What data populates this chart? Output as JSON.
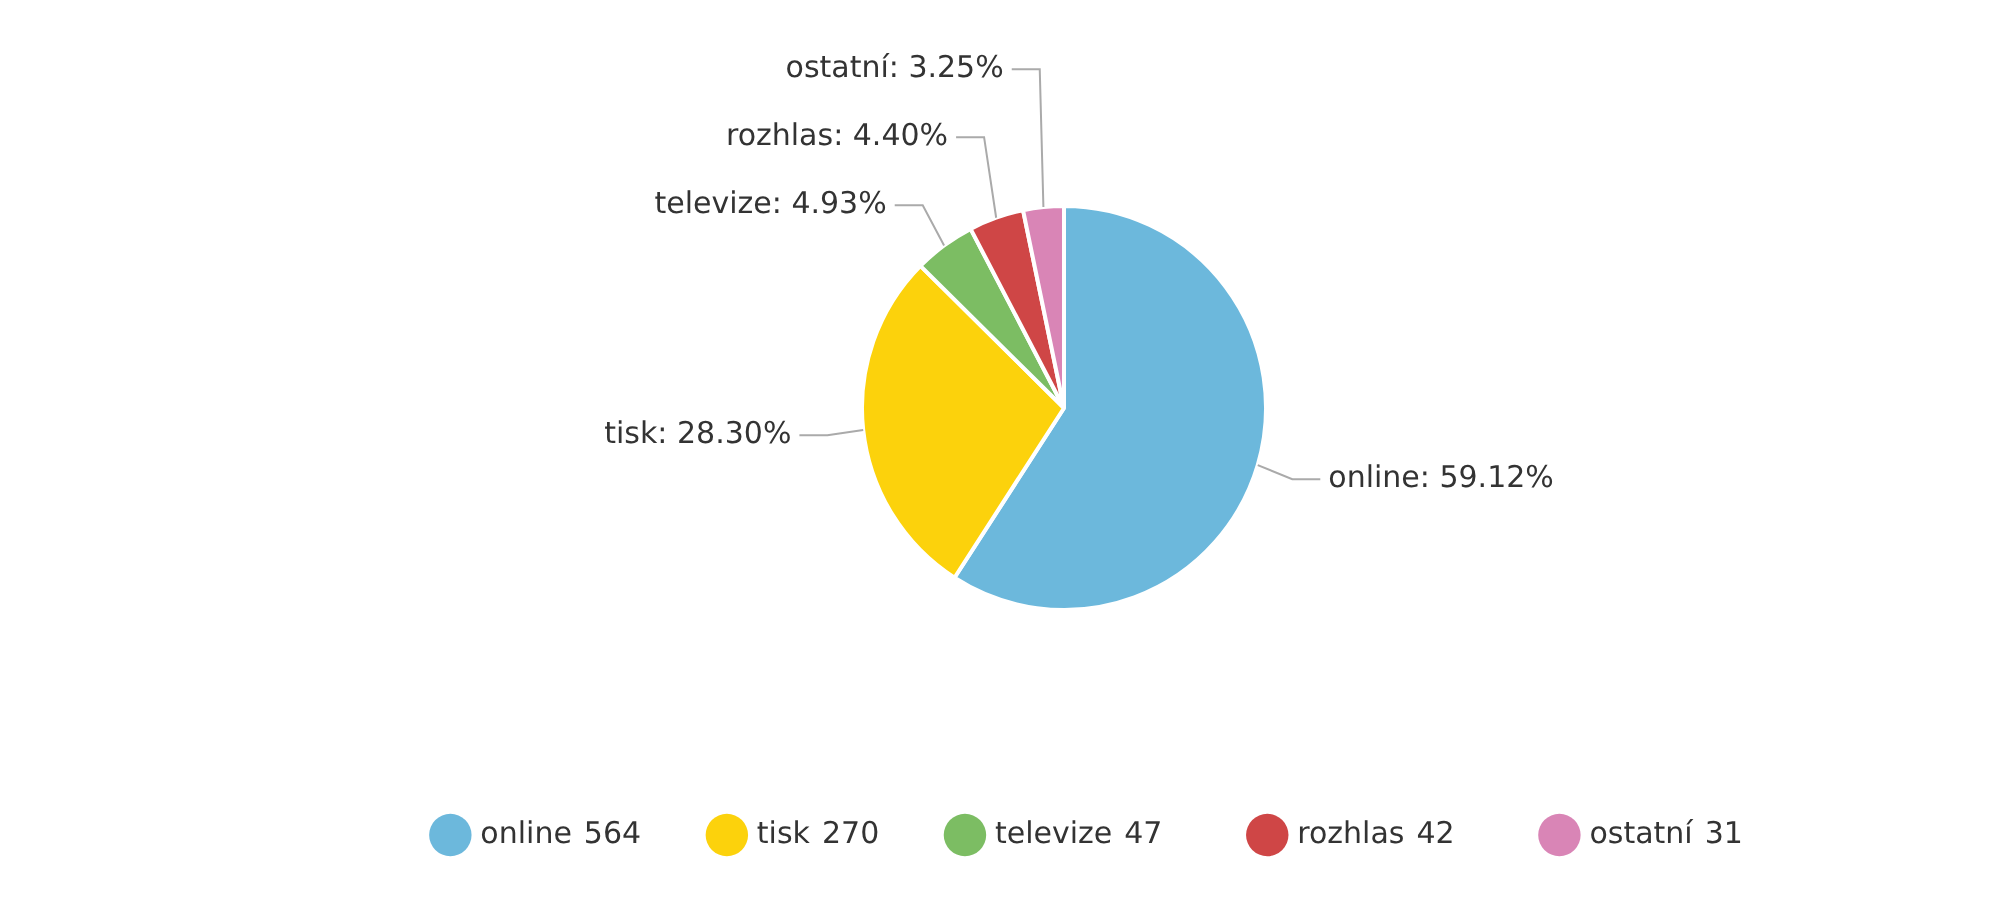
{
  "chart_data": {
    "type": "pie",
    "categories": [
      "online",
      "tisk",
      "televize",
      "rozhlas",
      "ostatní"
    ],
    "values": [
      59.12,
      28.3,
      4.93,
      4.4,
      3.25
    ],
    "value_labels": [
      ": 59.12%",
      ": 28.30%",
      ": 4.93%",
      ": 4.40%",
      ": 3.25%"
    ],
    "colors": [
      "#6cb8dc",
      "#fcd20c",
      "#7cbd63",
      "#cf4646",
      "#d985b6"
    ],
    "annotations": [
      "564",
      "270",
      "47",
      "42",
      "31"
    ],
    "legend": "bottom"
  }
}
